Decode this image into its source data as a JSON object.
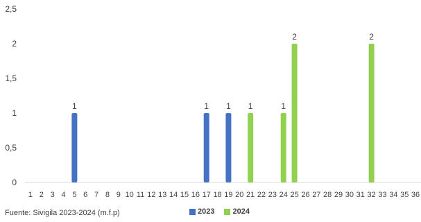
{
  "chart_data": {
    "type": "bar",
    "categories": [
      "1",
      "2",
      "3",
      "4",
      "5",
      "6",
      "7",
      "8",
      "9",
      "10",
      "11",
      "12",
      "13",
      "14",
      "15",
      "16",
      "17",
      "18",
      "19",
      "20",
      "21",
      "22",
      "23",
      "24",
      "25",
      "26",
      "27",
      "28",
      "29",
      "30",
      "31",
      "32",
      "33",
      "34",
      "35",
      "36"
    ],
    "ylim": [
      0,
      2.5
    ],
    "yticks": [
      "0",
      "0,5",
      "1",
      "1,5",
      "2",
      "2,5"
    ],
    "grid": false,
    "legend_position": "bottom",
    "series": [
      {
        "name": "2023",
        "color": "#4472C4",
        "points": [
          {
            "x": "5",
            "y": 1
          },
          {
            "x": "17",
            "y": 1
          },
          {
            "x": "19",
            "y": 1
          }
        ]
      },
      {
        "name": "2024",
        "color": "#92D050",
        "points": [
          {
            "x": "21",
            "y": 1
          },
          {
            "x": "24",
            "y": 1
          },
          {
            "x": "25",
            "y": 2
          },
          {
            "x": "32",
            "y": 2
          }
        ]
      }
    ]
  },
  "source_note": "Fuente: Sivigila 2023-2024 (m.f.p)"
}
